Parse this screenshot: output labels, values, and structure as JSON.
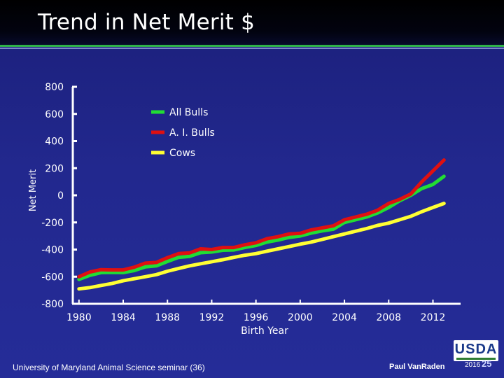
{
  "slide": {
    "title": "Trend in Net Merit $",
    "footer_left": "University of Maryland Animal Science seminar (36)",
    "footer_right": "Paul VanRaden",
    "logo_text": "USDA",
    "year_badge": "2016",
    "slide_number": "25"
  },
  "colors": {
    "all_bulls": "#22dd33",
    "ai_bulls": "#e01010",
    "cows": "#ffff33"
  },
  "chart_data": {
    "type": "line",
    "title": "Trend in Net Merit $",
    "xlabel": "Birth Year",
    "ylabel": "Net Merit",
    "xlim": [
      1979,
      2014.5
    ],
    "ylim": [
      -800,
      800
    ],
    "x_ticks": [
      1980,
      1984,
      1988,
      1992,
      1996,
      2000,
      2004,
      2008,
      2012
    ],
    "y_ticks": [
      800,
      600,
      400,
      200,
      0,
      -200,
      -400,
      -600,
      -800
    ],
    "legend_position": "top-center",
    "series": [
      {
        "name": "All Bulls",
        "color_key": "all_bulls",
        "x": [
          1980,
          1981,
          1982,
          1983,
          1984,
          1985,
          1986,
          1987,
          1988,
          1989,
          1990,
          1991,
          1992,
          1993,
          1994,
          1995,
          1996,
          1997,
          1998,
          1999,
          2000,
          2001,
          2002,
          2003,
          2004,
          2005,
          2006,
          2007,
          2008,
          2009,
          2010,
          2011,
          2012,
          2013
        ],
        "values": [
          -620,
          -590,
          -570,
          -568,
          -570,
          -555,
          -528,
          -520,
          -488,
          -458,
          -450,
          -423,
          -418,
          -405,
          -403,
          -385,
          -370,
          -345,
          -330,
          -310,
          -300,
          -278,
          -262,
          -250,
          -200,
          -180,
          -160,
          -130,
          -90,
          -40,
          0,
          50,
          80,
          140
        ]
      },
      {
        "name": "A. I. Bulls",
        "color_key": "ai_bulls",
        "x": [
          1980,
          1981,
          1982,
          1983,
          1984,
          1985,
          1986,
          1987,
          1988,
          1989,
          1990,
          1991,
          1992,
          1993,
          1994,
          1995,
          1996,
          1997,
          1998,
          1999,
          2000,
          2001,
          2002,
          2003,
          2004,
          2005,
          2006,
          2007,
          2008,
          2009,
          2010,
          2011,
          2012,
          2013
        ],
        "values": [
          -600,
          -565,
          -548,
          -550,
          -550,
          -530,
          -500,
          -495,
          -460,
          -430,
          -425,
          -395,
          -400,
          -385,
          -385,
          -365,
          -350,
          -320,
          -305,
          -285,
          -280,
          -255,
          -240,
          -225,
          -180,
          -160,
          -140,
          -110,
          -60,
          -30,
          10,
          100,
          180,
          260
        ]
      },
      {
        "name": "Cows",
        "color_key": "cows",
        "x": [
          1980,
          1981,
          1982,
          1983,
          1984,
          1985,
          1986,
          1987,
          1988,
          1989,
          1990,
          1991,
          1992,
          1993,
          1994,
          1995,
          1996,
          1997,
          1998,
          1999,
          2000,
          2001,
          2002,
          2003,
          2004,
          2005,
          2006,
          2007,
          2008,
          2009,
          2010,
          2011,
          2012,
          2013
        ],
        "values": [
          -690,
          -680,
          -665,
          -650,
          -630,
          -615,
          -600,
          -585,
          -560,
          -540,
          -520,
          -505,
          -490,
          -475,
          -458,
          -442,
          -430,
          -412,
          -395,
          -378,
          -360,
          -345,
          -325,
          -305,
          -285,
          -265,
          -245,
          -222,
          -205,
          -180,
          -155,
          -120,
          -90,
          -60
        ]
      }
    ]
  }
}
